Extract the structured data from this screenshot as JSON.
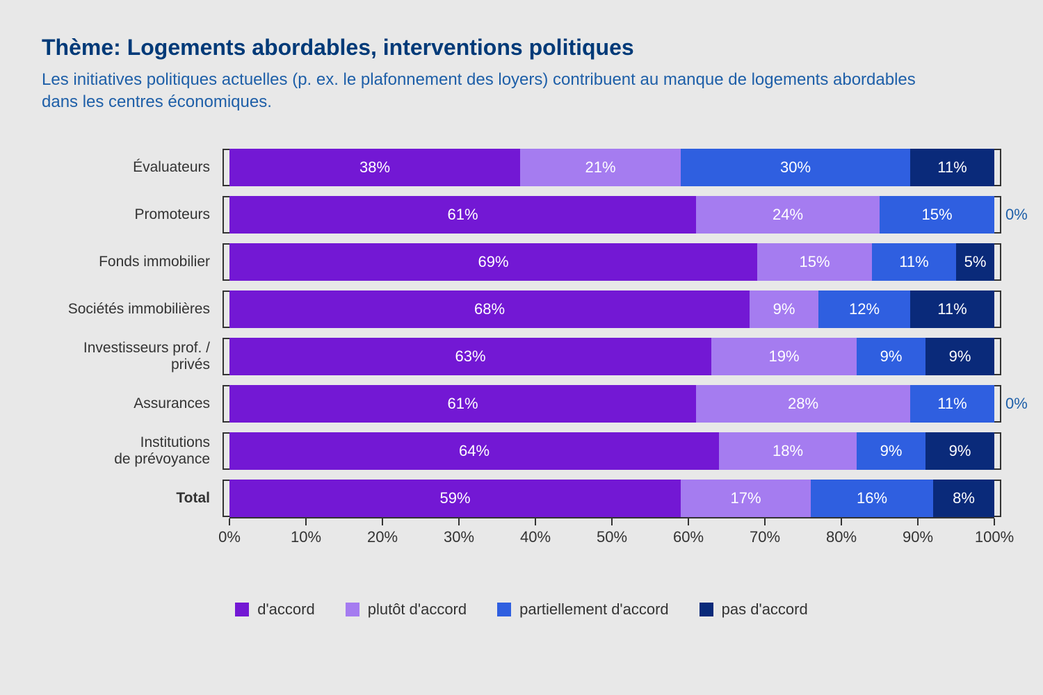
{
  "title": "Thème: Logements abordables, interventions politiques",
  "subtitle": "Les initiatives politiques actuelles (p. ex. le plafonnement des loyers) contribuent au manque de logements abordables dans les centres économiques.",
  "colors": {
    "title": "#003a78",
    "subtitle": "#1e5fa8",
    "background": "#e8e8e8",
    "axis": "#333333",
    "series": [
      "#7318d4",
      "#a57cf0",
      "#2f5fe0",
      "#0a2a7a"
    ]
  },
  "legend": [
    "d'accord",
    "plutôt d'accord",
    "partiellement d'accord",
    "pas d'accord"
  ],
  "axis": {
    "ticks": [
      0,
      10,
      20,
      30,
      40,
      50,
      60,
      70,
      80,
      90,
      100
    ],
    "suffix": "%"
  },
  "rows": [
    {
      "label": "Évaluateurs",
      "values": [
        38,
        21,
        30,
        11
      ]
    },
    {
      "label": "Promoteurs",
      "values": [
        61,
        24,
        15,
        0
      ],
      "overflow": "0%"
    },
    {
      "label": "Fonds immobilier",
      "values": [
        69,
        15,
        11,
        5
      ]
    },
    {
      "label": "Sociétés immobilières",
      "values": [
        68,
        9,
        12,
        11
      ]
    },
    {
      "label": "Investisseurs prof. /\nprivés",
      "values": [
        63,
        19,
        9,
        9
      ]
    },
    {
      "label": "Assurances",
      "values": [
        61,
        28,
        11,
        0
      ],
      "overflow": "0%"
    },
    {
      "label": "Institutions\nde prévoyance",
      "values": [
        64,
        18,
        9,
        9
      ]
    },
    {
      "label": "Total",
      "values": [
        59,
        17,
        16,
        8
      ],
      "total": true
    }
  ]
}
